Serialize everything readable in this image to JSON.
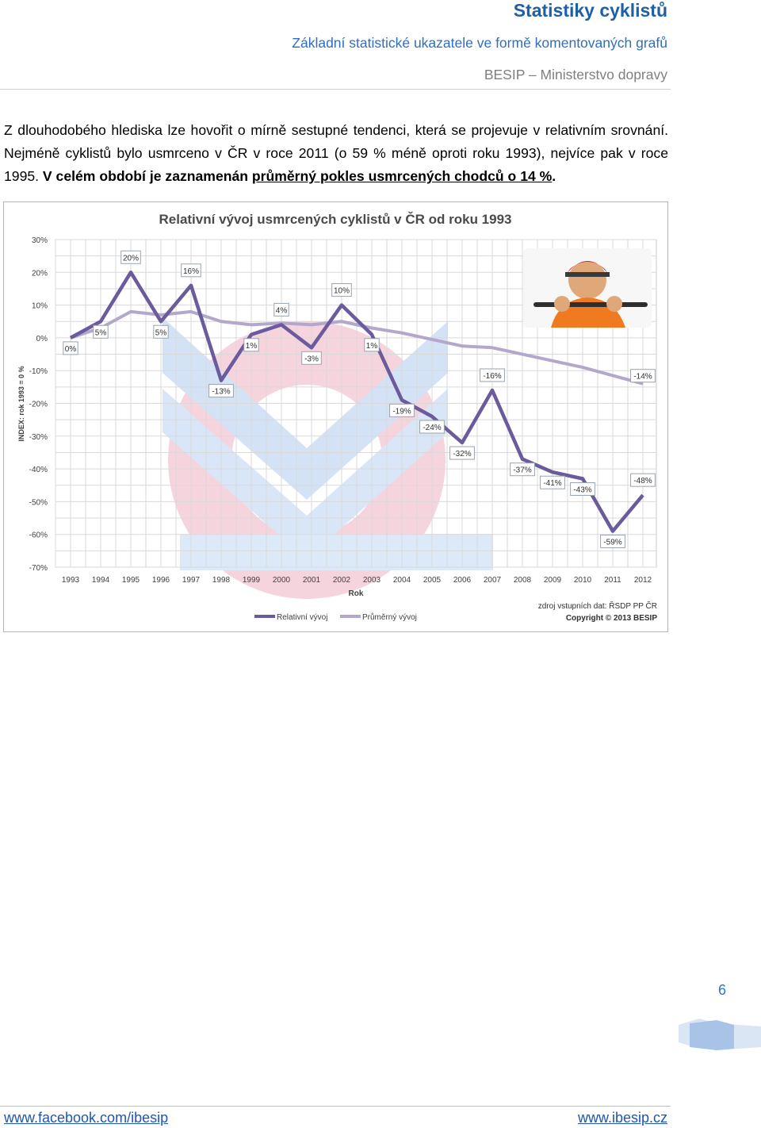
{
  "header": {
    "title": "Statistiky cyklistů",
    "subtitle": "Základní statistické ukazatele ve formě komentovaných grafů",
    "org": "BESIP – Ministerstvo dopravy"
  },
  "paragraph": {
    "p1": "Z dlouhodobého hlediska lze hovořit o mírně sestupné tendenci, která se projevuje v relativním srovnání. Nejméně cyklistů bylo usmrceno v ČR v roce 2011 (o 59 % méně oproti roku 1993), nejvíce pak v roce 1995. ",
    "p2": "V celém období je zaznamenán ",
    "p3": "průměrný pokles usmrcených chodců o 14 %",
    "p4": "."
  },
  "chart_data": {
    "type": "line",
    "title": "Relativní vývoj usmrcených cyklistů v ČR od roku 1993",
    "xlabel": "Rok",
    "ylabel": "INDEX: rok 1993 = 0 %",
    "ylim": [
      -70,
      30
    ],
    "yticks": [
      "30%",
      "20%",
      "10%",
      "0%",
      "-10%",
      "-20%",
      "-30%",
      "-40%",
      "-50%",
      "-60%",
      "-70%"
    ],
    "categories": [
      "1993",
      "1994",
      "1995",
      "1996",
      "1997",
      "1998",
      "1999",
      "2000",
      "2001",
      "2002",
      "2003",
      "2004",
      "2005",
      "2006",
      "2007",
      "2008",
      "2009",
      "2010",
      "2011",
      "2012"
    ],
    "series": [
      {
        "name": "Relativní vývoj",
        "color": "#6b5a9c",
        "values": [
          0,
          5,
          20,
          5,
          16,
          -13,
          1,
          4,
          -3,
          10,
          1,
          -19,
          -24,
          -32,
          -16,
          -37,
          -41,
          -43,
          -59,
          -48
        ],
        "labels": [
          "0%",
          "5%",
          "20%",
          "5%",
          "16%",
          "-13%",
          "1%",
          "4%",
          "-3%",
          "10%",
          "1%",
          "-19%",
          "-24%",
          "-32%",
          "-16%",
          "-37%",
          "-41%",
          "-43%",
          "-59%",
          "-48%"
        ]
      },
      {
        "name": "Průměrný vývoj",
        "color": "#b3a8cc",
        "values": [
          0,
          3,
          8,
          7,
          8,
          5,
          4,
          4.5,
          4,
          5,
          3,
          1.5,
          -0.5,
          -2.5,
          -3,
          -5,
          -7,
          -9,
          -11.5,
          -14
        ],
        "end_label": "-14%"
      }
    ],
    "source": "zdroj vstupních dat: ŘSDP PP ČR",
    "copyright": "Copyright © 2013 BESIP",
    "grid": true,
    "legend_position": "bottom-left"
  },
  "footer": {
    "page_number": "6",
    "left_link": "www.facebook.com/ibesip",
    "right_link": "www.ibesip.cz"
  }
}
